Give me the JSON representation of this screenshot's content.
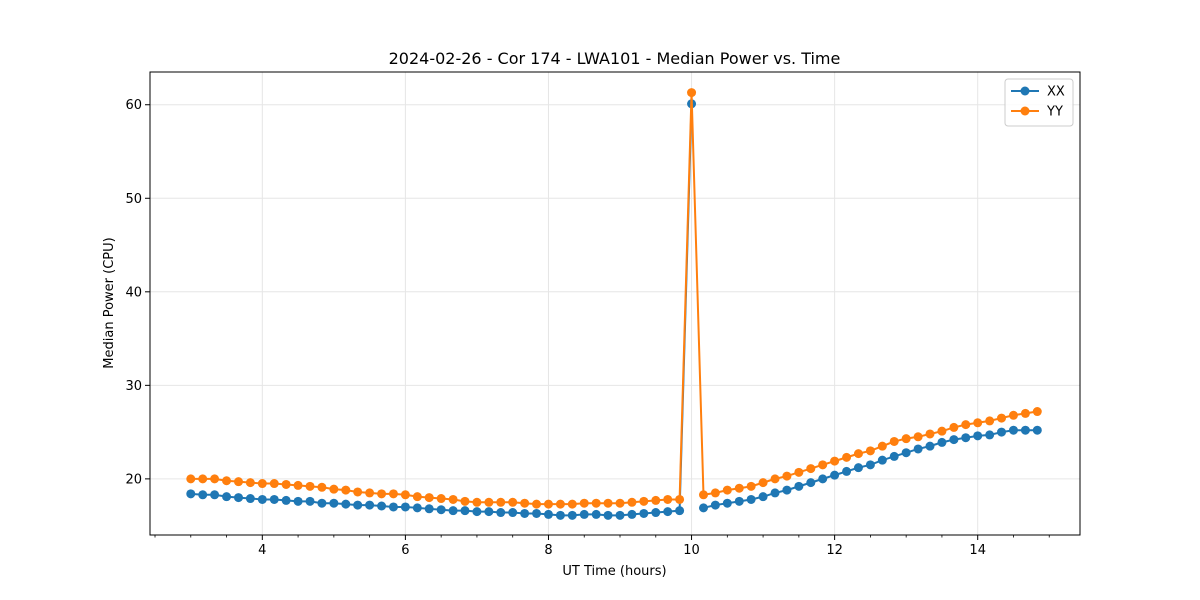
{
  "chart_data": {
    "type": "line",
    "title": "2024-02-26 - Cor 174 - LWA101 - Median Power vs. Time",
    "xlabel": "UT Time (hours)",
    "ylabel": "Median Power (CPU)",
    "xlim": [
      2.43,
      15.43
    ],
    "ylim": [
      14.0,
      63.5
    ],
    "xticks": [
      4,
      6,
      8,
      10,
      12,
      14
    ],
    "yticks": [
      20,
      30,
      40,
      50,
      60
    ],
    "grid": true,
    "legend_position": "top-right",
    "series": [
      {
        "name": "XX",
        "color": "#1f77b4",
        "x": [
          3.0,
          3.167,
          3.333,
          3.5,
          3.667,
          3.833,
          4.0,
          4.167,
          4.333,
          4.5,
          4.667,
          4.833,
          5.0,
          5.167,
          5.333,
          5.5,
          5.667,
          5.833,
          6.0,
          6.167,
          6.333,
          6.5,
          6.667,
          6.833,
          7.0,
          7.167,
          7.333,
          7.5,
          7.667,
          7.833,
          8.0,
          8.167,
          8.333,
          8.5,
          8.667,
          8.833,
          9.0,
          9.167,
          9.333,
          9.5,
          9.667,
          9.833,
          10.0,
          null,
          10.167,
          10.333,
          10.5,
          10.667,
          10.833,
          11.0,
          11.167,
          11.333,
          11.5,
          11.667,
          11.833,
          12.0,
          12.167,
          12.333,
          12.5,
          12.667,
          12.833,
          13.0,
          13.167,
          13.333,
          13.5,
          13.667,
          13.833,
          14.0,
          14.167,
          14.333,
          14.5,
          14.667,
          14.833
        ],
        "y": [
          18.4,
          18.3,
          18.3,
          18.1,
          18.0,
          17.9,
          17.8,
          17.8,
          17.7,
          17.6,
          17.6,
          17.4,
          17.4,
          17.3,
          17.2,
          17.2,
          17.1,
          17.0,
          17.0,
          16.9,
          16.8,
          16.7,
          16.6,
          16.6,
          16.5,
          16.5,
          16.4,
          16.4,
          16.3,
          16.3,
          16.2,
          16.1,
          16.1,
          16.2,
          16.2,
          16.1,
          16.1,
          16.2,
          16.3,
          16.4,
          16.5,
          16.6,
          60.1,
          null,
          16.9,
          17.2,
          17.4,
          17.6,
          17.8,
          18.1,
          18.5,
          18.8,
          19.2,
          19.6,
          20.0,
          20.4,
          20.8,
          21.2,
          21.5,
          22.0,
          22.4,
          22.8,
          23.2,
          23.5,
          23.9,
          24.2,
          24.4,
          24.6,
          24.7,
          25.0,
          25.2,
          25.2,
          25.2
        ]
      },
      {
        "name": "YY",
        "color": "#ff7f0e",
        "x": [
          3.0,
          3.167,
          3.333,
          3.5,
          3.667,
          3.833,
          4.0,
          4.167,
          4.333,
          4.5,
          4.667,
          4.833,
          5.0,
          5.167,
          5.333,
          5.5,
          5.667,
          5.833,
          6.0,
          6.167,
          6.333,
          6.5,
          6.667,
          6.833,
          7.0,
          7.167,
          7.333,
          7.5,
          7.667,
          7.833,
          8.0,
          8.167,
          8.333,
          8.5,
          8.667,
          8.833,
          9.0,
          9.167,
          9.333,
          9.5,
          9.667,
          9.833,
          10.0,
          10.167,
          10.333,
          10.5,
          10.667,
          10.833,
          11.0,
          11.167,
          11.333,
          11.5,
          11.667,
          11.833,
          12.0,
          12.167,
          12.333,
          12.5,
          12.667,
          12.833,
          13.0,
          13.167,
          13.333,
          13.5,
          13.667,
          13.833,
          14.0,
          14.167,
          14.333,
          14.5,
          14.667,
          14.833
        ],
        "y": [
          20.0,
          20.0,
          20.0,
          19.8,
          19.7,
          19.6,
          19.5,
          19.5,
          19.4,
          19.3,
          19.2,
          19.1,
          18.9,
          18.8,
          18.6,
          18.5,
          18.4,
          18.4,
          18.3,
          18.1,
          18.0,
          17.9,
          17.8,
          17.6,
          17.5,
          17.5,
          17.5,
          17.5,
          17.4,
          17.3,
          17.3,
          17.3,
          17.3,
          17.4,
          17.4,
          17.4,
          17.4,
          17.5,
          17.6,
          17.7,
          17.8,
          17.8,
          61.3,
          18.3,
          18.5,
          18.8,
          19.0,
          19.2,
          19.6,
          20.0,
          20.3,
          20.7,
          21.1,
          21.5,
          21.9,
          22.3,
          22.7,
          23.0,
          23.5,
          24.0,
          24.3,
          24.5,
          24.8,
          25.1,
          25.5,
          25.8,
          26.0,
          26.2,
          26.5,
          26.8,
          27.0,
          27.2
        ]
      }
    ]
  }
}
